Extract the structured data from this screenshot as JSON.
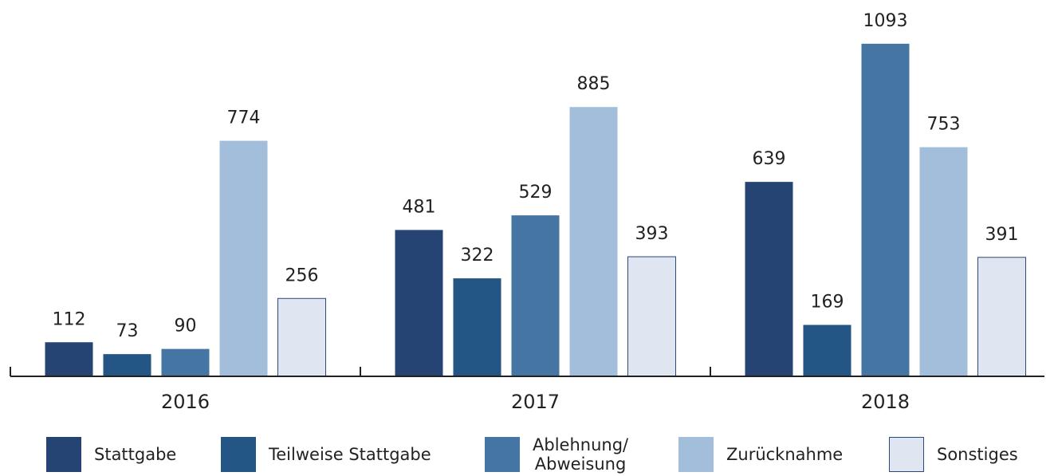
{
  "chart_data": {
    "type": "bar",
    "categories": [
      "2016",
      "2017",
      "2018"
    ],
    "series": [
      {
        "name": "Stattgabe",
        "color": "#264473",
        "values": [
          112,
          481,
          639
        ]
      },
      {
        "name": "Teilweise Stattgabe",
        "color": "#235685",
        "values": [
          73,
          322,
          169
        ]
      },
      {
        "name": "Ablehnung/\nAbweisung",
        "color": "#4575a3",
        "values": [
          90,
          529,
          1093
        ]
      },
      {
        "name": "Zurücknahme",
        "color": "#a3bedb",
        "values": [
          774,
          885,
          753
        ]
      },
      {
        "name": "Sonstiges",
        "color": "#dfe6f2",
        "values": [
          256,
          393,
          391
        ]
      }
    ],
    "ylim": [
      0,
      1200
    ]
  }
}
